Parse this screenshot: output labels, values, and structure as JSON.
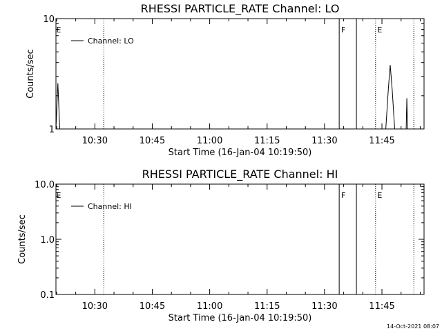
{
  "chart_data": [
    {
      "type": "line",
      "title": "RHESSI PARTICLE_RATE Channel: LO",
      "xlabel": "Start Time (16-Jan-04 10:19:50)",
      "ylabel": "Counts/sec",
      "y_scale": "log",
      "ylim": [
        1,
        10
      ],
      "y_ticks": [
        1,
        10
      ],
      "y_tick_labels": [
        "1",
        "10"
      ],
      "xlim": [
        "10:19:50",
        "11:56:00"
      ],
      "x_ticks": [
        "10:30",
        "10:45",
        "11:00",
        "11:15",
        "11:30",
        "11:45"
      ],
      "legend": {
        "position": "top-left",
        "entries": [
          "Channel: LO"
        ]
      },
      "series": [
        {
          "name": "Channel: LO",
          "color": "#000000",
          "x": [
            "10:19:50",
            "10:20:20",
            "10:20:50",
            "11:46:00",
            "11:46:40",
            "11:47:10",
            "11:47:40",
            "11:48:20",
            "11:51:20",
            "11:51:30",
            "11:51:40"
          ],
          "y": [
            1,
            2.6,
            1,
            1,
            2.3,
            3.8,
            2.3,
            1,
            1,
            1.9,
            1
          ]
        }
      ],
      "event_markers": [
        {
          "time": "10:32:20",
          "label": "",
          "style": "dotted"
        },
        {
          "time": "11:33:50",
          "label": "F",
          "style": "solid"
        },
        {
          "time": "11:38:20",
          "label": "",
          "style": "solid"
        },
        {
          "time": "11:43:20",
          "label": "E",
          "style": "dotted"
        },
        {
          "time": "11:53:20",
          "label": "",
          "style": "dotted"
        }
      ],
      "start_marker_label": "E"
    },
    {
      "type": "line",
      "title": "RHESSI PARTICLE_RATE Channel: HI",
      "xlabel": "Start Time (16-Jan-04 10:19:50)",
      "ylabel": "Counts/sec",
      "y_scale": "log",
      "ylim": [
        0.1,
        10
      ],
      "y_ticks": [
        0.1,
        1,
        10
      ],
      "y_tick_labels": [
        "0.1",
        "1.0",
        "10.0"
      ],
      "xlim": [
        "10:19:50",
        "11:56:00"
      ],
      "x_ticks": [
        "10:30",
        "10:45",
        "11:00",
        "11:15",
        "11:30",
        "11:45"
      ],
      "legend": {
        "position": "top-left",
        "entries": [
          "Channel: HI"
        ]
      },
      "series": [
        {
          "name": "Channel: HI",
          "color": "#000000",
          "x": [],
          "y": []
        }
      ],
      "event_markers": [
        {
          "time": "10:32:20",
          "label": "",
          "style": "dotted"
        },
        {
          "time": "11:33:50",
          "label": "F",
          "style": "solid"
        },
        {
          "time": "11:38:20",
          "label": "",
          "style": "solid"
        },
        {
          "time": "11:43:20",
          "label": "E",
          "style": "dotted"
        },
        {
          "time": "11:53:20",
          "label": "",
          "style": "dotted"
        }
      ],
      "start_marker_label": "E"
    }
  ],
  "timestamp": "14-Oct-2021 08:07"
}
